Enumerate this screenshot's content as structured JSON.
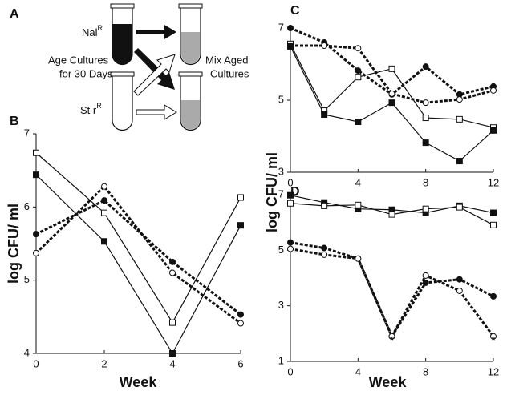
{
  "panel_a": {
    "label": "A",
    "tube1": {
      "name": "Nal",
      "sup": "R"
    },
    "tube2": {
      "name": "St r",
      "sup": "R"
    },
    "left_text": [
      "Age Cultures",
      "for 30 Days"
    ],
    "right_text": [
      "Mix Aged",
      "Cultures"
    ]
  },
  "chart_data": [
    {
      "type": "line",
      "panel_label": "B",
      "ylabel": "log CFU/ ml",
      "xlabel": "Week",
      "x": [
        0,
        2,
        4,
        6
      ],
      "xlim": [
        0,
        6
      ],
      "xticks": [
        0,
        2,
        4,
        6
      ],
      "ylim": [
        4,
        7
      ],
      "yticks": [
        4,
        5,
        6,
        7
      ],
      "series": [
        {
          "marker": "square",
          "filled": false,
          "dashed": false,
          "color": "#111111",
          "values": [
            6.74,
            5.92,
            4.42,
            6.13
          ]
        },
        {
          "marker": "square",
          "filled": true,
          "dashed": false,
          "color": "#111111",
          "values": [
            6.44,
            5.53,
            4.0,
            5.75
          ]
        },
        {
          "marker": "circle",
          "filled": true,
          "dashed": true,
          "color": "#111111",
          "values": [
            5.63,
            6.09,
            5.25,
            4.53
          ]
        },
        {
          "marker": "circle",
          "filled": false,
          "dashed": true,
          "color": "#111111",
          "values": [
            5.37,
            6.28,
            5.1,
            4.41
          ]
        }
      ]
    },
    {
      "type": "line",
      "panel_label": "C",
      "ylabel": "log CFU/ ml",
      "x": [
        0,
        2,
        4,
        6,
        8,
        10,
        12
      ],
      "xlim": [
        0,
        12
      ],
      "xticks": [
        0,
        4,
        8,
        12
      ],
      "ylim": [
        3,
        7
      ],
      "yticks": [
        3,
        5,
        7
      ],
      "series": [
        {
          "marker": "circle",
          "filled": true,
          "dashed": true,
          "color": "#111111",
          "values": [
            7.0,
            6.6,
            5.82,
            5.16,
            5.93,
            5.16,
            5.38
          ]
        },
        {
          "marker": "circle",
          "filled": false,
          "dashed": true,
          "color": "#111111",
          "values": [
            6.51,
            6.51,
            6.44,
            5.18,
            4.93,
            5.02,
            5.27
          ]
        },
        {
          "marker": "square",
          "filled": false,
          "dashed": false,
          "color": "#111111",
          "values": [
            6.56,
            4.71,
            5.64,
            5.87,
            4.51,
            4.47,
            4.24
          ]
        },
        {
          "marker": "square",
          "filled": true,
          "dashed": false,
          "color": "#111111",
          "values": [
            6.49,
            4.6,
            4.4,
            4.93,
            3.82,
            3.31,
            4.16
          ]
        }
      ]
    },
    {
      "type": "line",
      "panel_label": "D",
      "xlabel": "Week",
      "x": [
        0,
        2,
        4,
        6,
        8,
        10,
        12
      ],
      "xlim": [
        0,
        12
      ],
      "xticks": [
        0,
        4,
        8,
        12
      ],
      "ylim": [
        1,
        7
      ],
      "yticks": [
        1,
        3,
        5,
        7
      ],
      "series": [
        {
          "marker": "square",
          "filled": true,
          "dashed": false,
          "color": "#111111",
          "values": [
            6.98,
            6.72,
            6.49,
            6.46,
            6.35,
            6.6,
            6.35
          ]
        },
        {
          "marker": "square",
          "filled": false,
          "dashed": false,
          "color": "#111111",
          "values": [
            6.69,
            6.6,
            6.63,
            6.29,
            6.49,
            6.55,
            5.91
          ]
        },
        {
          "marker": "circle",
          "filled": true,
          "dashed": true,
          "color": "#111111",
          "values": [
            5.28,
            5.08,
            4.7,
            1.9,
            3.83,
            3.95,
            3.34
          ]
        },
        {
          "marker": "circle",
          "filled": false,
          "dashed": true,
          "color": "#111111",
          "values": [
            5.05,
            4.84,
            4.7,
            1.9,
            4.09,
            3.54,
            1.9
          ]
        }
      ],
      "annotations": [
        {
          "text": "*",
          "x": 6,
          "y": 1.9
        },
        {
          "text": "*",
          "x": 12,
          "y": 1.9
        }
      ]
    }
  ]
}
